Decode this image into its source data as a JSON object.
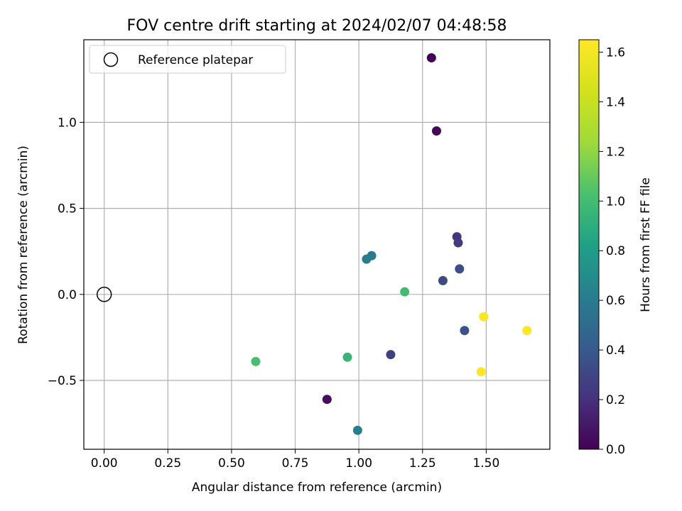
{
  "chart_data": {
    "type": "scatter",
    "title": "FOV centre drift starting at 2024/02/07 04:48:58",
    "xlabel": "Angular distance from reference (arcmin)",
    "ylabel": "Rotation from reference (arcmin)",
    "xlim": [
      -0.08,
      1.75
    ],
    "ylim": [
      -0.9,
      1.48
    ],
    "xticks": [
      0.0,
      0.25,
      0.5,
      0.75,
      1.0,
      1.25,
      1.5
    ],
    "xtick_labels": [
      "0.00",
      "0.25",
      "0.50",
      "0.75",
      "1.00",
      "1.25",
      "1.50"
    ],
    "yticks": [
      -0.5,
      0.0,
      0.5,
      1.0
    ],
    "ytick_labels": [
      "−0.5",
      "0.0",
      "0.5",
      "1.0"
    ],
    "grid": true,
    "legend": {
      "placement": "top-left",
      "entries": [
        "Reference platepar"
      ]
    },
    "reference_point": {
      "x": 0.0,
      "y": 0.0,
      "label": "Reference platepar"
    },
    "colorbar": {
      "label": "Hours from first FF file",
      "colormap": "viridis",
      "range": [
        0.0,
        1.65
      ],
      "ticks": [
        0.0,
        0.2,
        0.4,
        0.6,
        0.8,
        1.0,
        1.2,
        1.4,
        1.6
      ],
      "tick_labels": [
        "0.0",
        "0.2",
        "0.4",
        "0.6",
        "0.8",
        "1.0",
        "1.2",
        "1.4",
        "1.6"
      ]
    },
    "points": [
      {
        "x": 1.285,
        "y": 1.375,
        "hours": 0.0
      },
      {
        "x": 1.305,
        "y": 0.95,
        "hours": 0.03
      },
      {
        "x": 0.875,
        "y": -0.61,
        "hours": 0.05
      },
      {
        "x": 1.385,
        "y": 0.335,
        "hours": 0.22
      },
      {
        "x": 1.39,
        "y": 0.3,
        "hours": 0.24
      },
      {
        "x": 1.125,
        "y": -0.35,
        "hours": 0.27
      },
      {
        "x": 1.33,
        "y": 0.08,
        "hours": 0.32
      },
      {
        "x": 1.395,
        "y": 0.148,
        "hours": 0.34
      },
      {
        "x": 1.415,
        "y": -0.21,
        "hours": 0.37
      },
      {
        "x": 1.05,
        "y": 0.225,
        "hours": 0.58
      },
      {
        "x": 1.03,
        "y": 0.205,
        "hours": 0.61
      },
      {
        "x": 0.995,
        "y": -0.79,
        "hours": 0.62
      },
      {
        "x": 0.955,
        "y": -0.365,
        "hours": 0.95
      },
      {
        "x": 1.18,
        "y": 0.015,
        "hours": 1.0
      },
      {
        "x": 0.595,
        "y": -0.39,
        "hours": 1.02
      },
      {
        "x": 1.49,
        "y": -0.13,
        "hours": 1.63
      },
      {
        "x": 1.48,
        "y": -0.45,
        "hours": 1.64
      },
      {
        "x": 1.66,
        "y": -0.21,
        "hours": 1.65
      }
    ]
  }
}
